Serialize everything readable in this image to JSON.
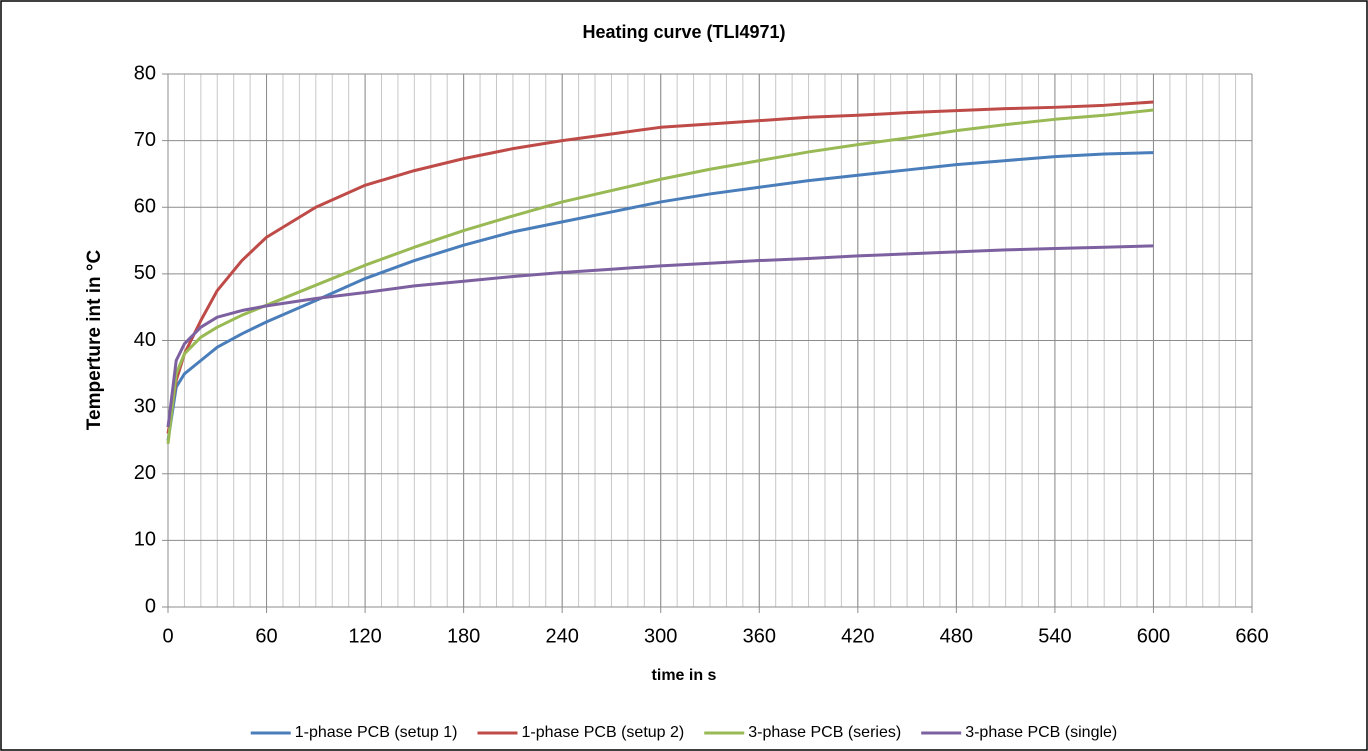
{
  "chart_data": {
    "type": "line",
    "title": "Heating curve (TLI4971)",
    "x_label": "time in s",
    "y_label": "Temperture int in °C",
    "x": [
      0,
      5,
      10,
      20,
      30,
      45,
      60,
      90,
      120,
      150,
      180,
      210,
      240,
      270,
      300,
      330,
      360,
      390,
      420,
      450,
      480,
      510,
      540,
      570,
      600
    ],
    "series": [
      {
        "name": "1-phase PCB (setup 1)",
        "color": "#4a7ebb",
        "values": [
          25,
          33,
          35,
          37,
          39,
          41,
          42.8,
          46,
          49.3,
          52,
          54.3,
          56.3,
          57.8,
          59.3,
          60.8,
          62,
          63,
          64,
          64.8,
          65.6,
          66.4,
          67,
          67.6,
          68,
          68.2
        ]
      },
      {
        "name": "1-phase PCB (setup 2)",
        "color": "#be4b48",
        "values": [
          26,
          34,
          38,
          43,
          47.5,
          52,
          55.5,
          60,
          63.3,
          65.5,
          67.3,
          68.8,
          70,
          71,
          72,
          72.5,
          73,
          73.5,
          73.8,
          74.2,
          74.5,
          74.8,
          75,
          75.3,
          75.8
        ]
      },
      {
        "name": "3-phase PCB (series)",
        "color": "#98b954",
        "values": [
          24.5,
          35,
          38,
          40.5,
          42,
          43.8,
          45.3,
          48.3,
          51.3,
          54,
          56.5,
          58.7,
          60.8,
          62.5,
          64.2,
          65.7,
          67,
          68.3,
          69.4,
          70.4,
          71.5,
          72.4,
          73.2,
          73.8,
          74.6
        ]
      },
      {
        "name": "3-phase PCB (single)",
        "color": "#7d60a0",
        "values": [
          27,
          37,
          39.5,
          42,
          43.5,
          44.5,
          45.2,
          46.3,
          47.2,
          48.2,
          48.9,
          49.6,
          50.2,
          50.7,
          51.2,
          51.6,
          52,
          52.3,
          52.7,
          53,
          53.3,
          53.6,
          53.8,
          54,
          54.2
        ]
      }
    ],
    "xlim": [
      0,
      660
    ],
    "xticks": [
      0,
      60,
      120,
      180,
      240,
      300,
      360,
      420,
      480,
      540,
      600,
      660
    ],
    "ylim": [
      0,
      80
    ],
    "yticks": [
      0,
      10,
      20,
      30,
      40,
      50,
      60,
      70,
      80
    ],
    "grid": true,
    "x_minor_step": 10,
    "legend": "bottom"
  }
}
